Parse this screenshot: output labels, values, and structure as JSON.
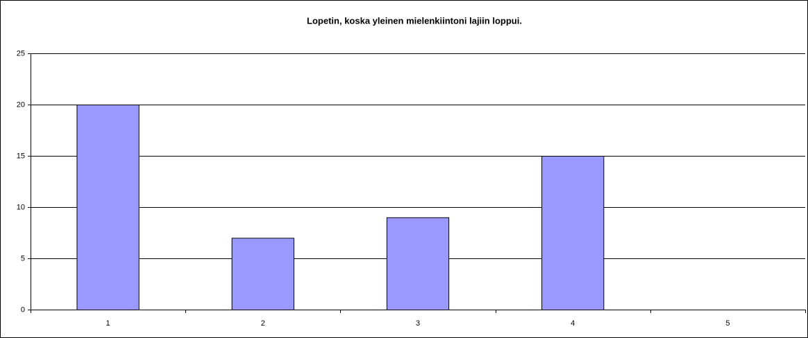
{
  "chart_data": {
    "type": "bar",
    "title": "Lopetin, koska yleinen mielenkiintoni lajiin loppui.",
    "categories": [
      "1",
      "2",
      "3",
      "4",
      "5"
    ],
    "values": [
      20,
      7,
      9,
      15,
      0
    ],
    "color": "#9999ff",
    "ylim": [
      0,
      25
    ],
    "yticks": [
      0,
      5,
      10,
      15,
      20,
      25
    ],
    "grid": true
  }
}
